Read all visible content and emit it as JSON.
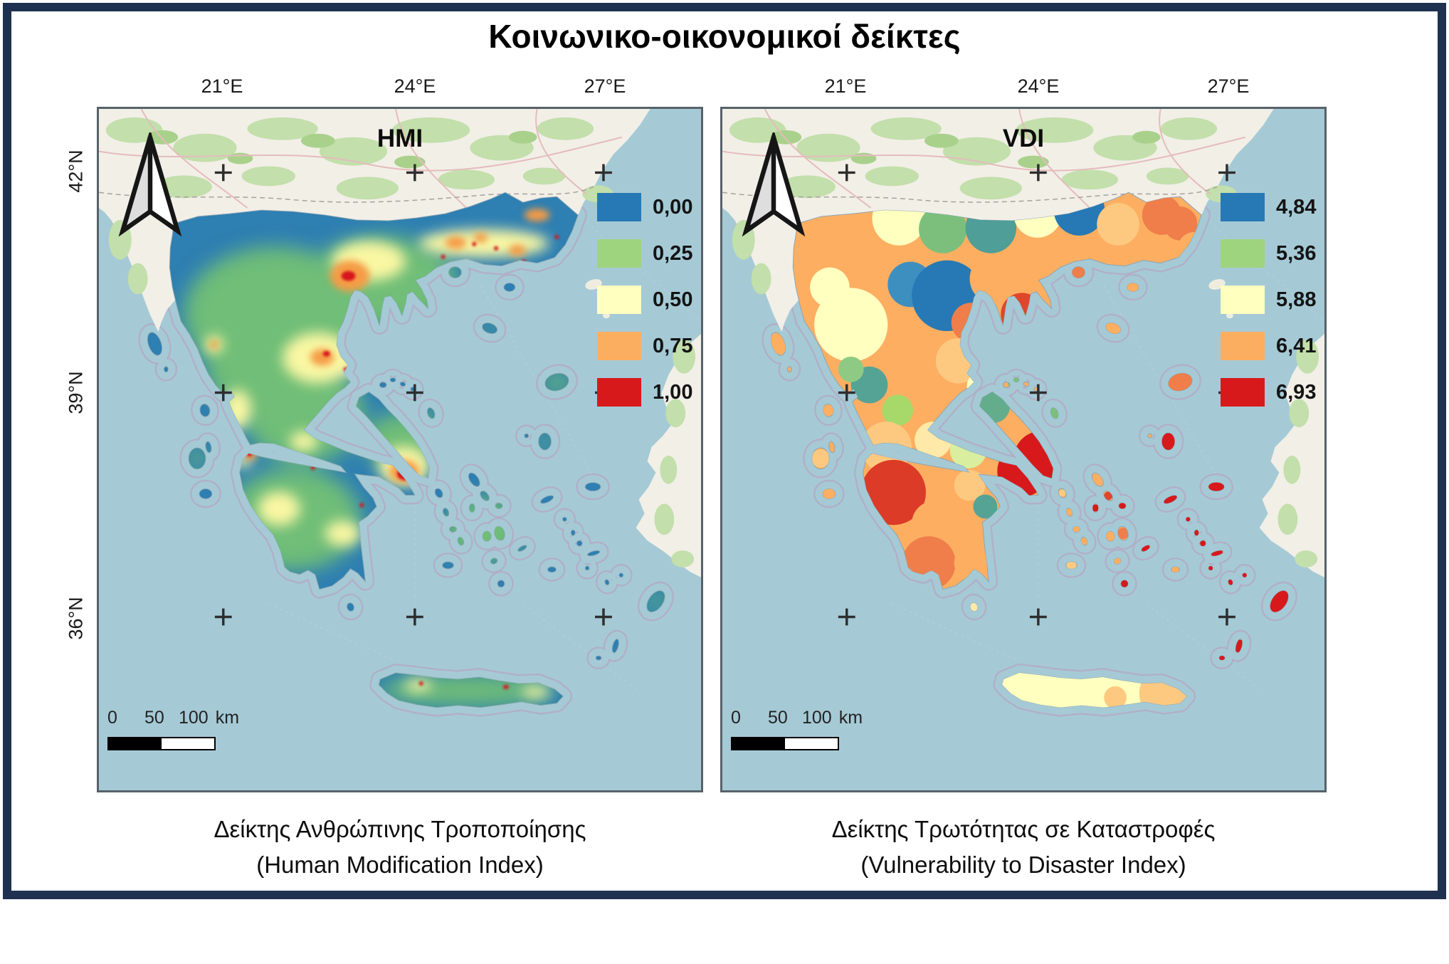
{
  "figure_title": "Κοινωνικο-οικονομικοί δείκτες",
  "frame_color": "#1f3150",
  "maps": [
    {
      "map_label": "HMI",
      "map_type": "raster heatmap of Greece",
      "lon_ticks": [
        "21°E",
        "24°E",
        "27°E"
      ],
      "lat_ticks": [
        "42°N",
        "39°N",
        "36°N"
      ],
      "legend": [
        {
          "label": "0,00",
          "color": "#2779b5"
        },
        {
          "label": "0,25",
          "color": "#9fd47f"
        },
        {
          "label": "0,50",
          "color": "#ffffbf"
        },
        {
          "label": "0,75",
          "color": "#fcae60"
        },
        {
          "label": "1,00",
          "color": "#d7191c"
        }
      ],
      "scalebar": {
        "tick0": "0",
        "tick1": "50",
        "tick2": "100",
        "unit": "km"
      },
      "caption_line1": "Δείκτης Ανθρώπινης Τροποποίησης",
      "caption_line2": "(Human Modification Index)"
    },
    {
      "map_label": "VDI",
      "map_type": "choropleth of Greek regions",
      "lon_ticks": [
        "21°E",
        "24°E",
        "27°E"
      ],
      "lat_ticks": [],
      "legend": [
        {
          "label": "4,84",
          "color": "#2779b5"
        },
        {
          "label": "5,36",
          "color": "#9fd47f"
        },
        {
          "label": "5,88",
          "color": "#ffffbf"
        },
        {
          "label": "6,41",
          "color": "#fcae60"
        },
        {
          "label": "6,93",
          "color": "#d7191c"
        }
      ],
      "scalebar": {
        "tick0": "0",
        "tick1": "50",
        "tick2": "100",
        "unit": "km"
      },
      "caption_line1": "Δείκτης Τρωτότητας σε Καταστροφές",
      "caption_line2": "(Vulnerability to Disaster Index)"
    }
  ]
}
